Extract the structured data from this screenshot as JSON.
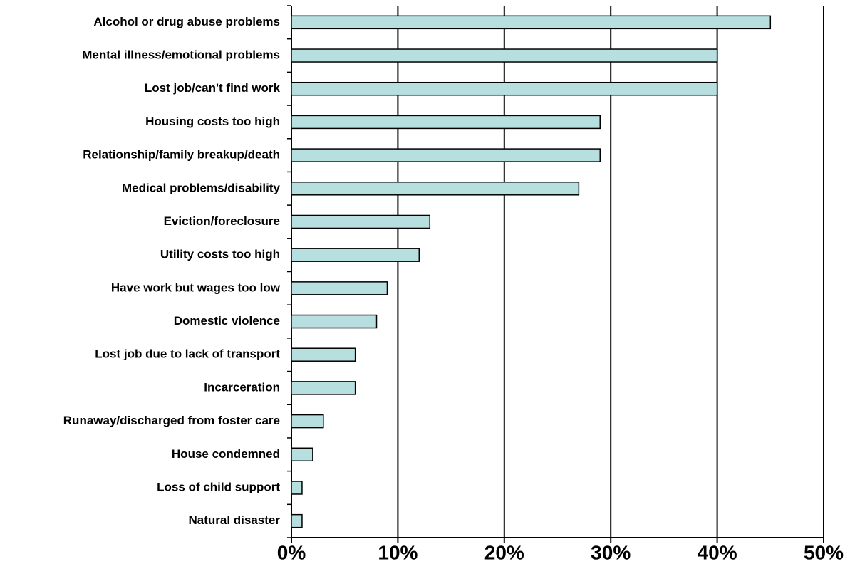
{
  "chart_data": {
    "type": "bar",
    "orientation": "horizontal",
    "categories": [
      "Alcohol or drug abuse problems",
      "Mental illness/emotional problems",
      "Lost job/can't find work",
      "Housing costs too high",
      "Relationship/family breakup/death",
      "Medical problems/disability",
      "Eviction/foreclosure",
      "Utility costs too high",
      "Have work but wages too low",
      "Domestic violence",
      "Lost job due to lack of transport",
      "Incarceration",
      "Runaway/discharged from foster care",
      "House condemned",
      "Loss of child support",
      "Natural disaster"
    ],
    "values": [
      45,
      40,
      40,
      29,
      29,
      27,
      13,
      12,
      9,
      8,
      6,
      6,
      3,
      2,
      1,
      1
    ],
    "color": "#b7dfe0",
    "xlim": [
      0,
      50
    ],
    "xticks": [
      {
        "value": 0,
        "label": "0%"
      },
      {
        "value": 10,
        "label": "10%"
      },
      {
        "value": 20,
        "label": "20%"
      },
      {
        "value": 30,
        "label": "30%"
      },
      {
        "value": 40,
        "label": "40%"
      },
      {
        "value": 50,
        "label": "50%"
      }
    ],
    "grid": true
  }
}
